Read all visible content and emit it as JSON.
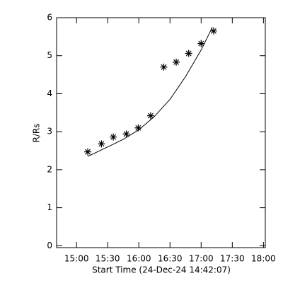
{
  "chart_data": {
    "type": "scatter",
    "xlabel": "Start Time (24-Dec-24 14:42:07)",
    "ylabel": "R/Rs",
    "x": [
      15.18,
      15.4,
      15.59,
      15.8,
      15.99,
      16.19,
      16.4,
      16.6,
      16.8,
      17.0,
      17.2
    ],
    "values": [
      2.47,
      2.68,
      2.86,
      2.94,
      3.1,
      3.42,
      4.7,
      4.83,
      5.06,
      5.32,
      5.65
    ],
    "marker": "asterisk",
    "color": "#000000",
    "fit": {
      "x": [
        15.18,
        15.5,
        15.75,
        16.0,
        16.25,
        16.5,
        16.75,
        17.0,
        17.18
      ],
      "values": [
        2.35,
        2.6,
        2.8,
        3.05,
        3.4,
        3.85,
        4.45,
        5.15,
        5.75
      ]
    },
    "xlim": [
      14.68,
      18.03
    ],
    "ylim": [
      -0.05,
      6
    ],
    "xticks": [
      {
        "value": 15,
        "label": "15:00"
      },
      {
        "value": 15.5,
        "label": "15:30"
      },
      {
        "value": 16,
        "label": "16:00"
      },
      {
        "value": 16.5,
        "label": "16:30"
      },
      {
        "value": 17,
        "label": "17:00"
      },
      {
        "value": 17.5,
        "label": "17:30"
      },
      {
        "value": 18,
        "label": "18:00"
      }
    ],
    "yticks": [
      0,
      1,
      2,
      3,
      4,
      5,
      6
    ]
  }
}
